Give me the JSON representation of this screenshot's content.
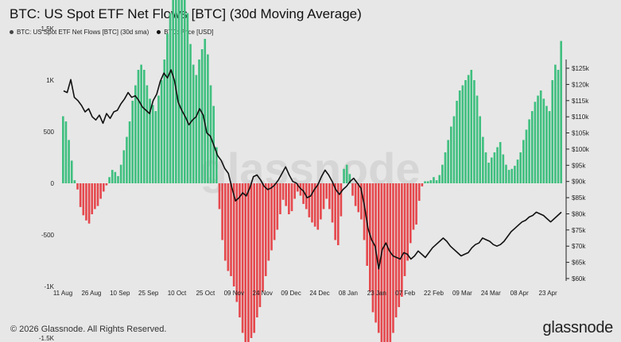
{
  "header": {
    "title": "BTC: US Spot ETF Net Flows [BTC] (30d Moving Average)"
  },
  "legend": [
    {
      "label": "BTC: US Spot ETF Net Flows [BTC] (30d sma)"
    },
    {
      "label": "BTC: Price [USD]"
    }
  ],
  "footer": {
    "copyright": "© 2026 Glassnode. All Rights Reserved.",
    "brand": "glassnode"
  },
  "watermark": "glassnode",
  "colors": {
    "positive": "#3fbf7f",
    "negative": "#e5484d",
    "price_line": "#111111",
    "background": "#e7e7e7"
  },
  "chart_data": {
    "type": "bar",
    "title": "BTC: US Spot ETF Net Flows [BTC] (30d Moving Average)",
    "grid": false,
    "legend_position": "top-left",
    "x_tick_labels": [
      "11 Aug",
      "26 Aug",
      "10 Sep",
      "25 Sep",
      "10 Oct",
      "25 Oct",
      "09 Nov",
      "24 Nov",
      "09 Dec",
      "24 Dec",
      "08 Jan",
      "23 Jan",
      "07 Feb",
      "22 Feb",
      "09 Mar",
      "24 Mar",
      "08 Apr",
      "23 Apr"
    ],
    "y_left_ticks": [
      "2K",
      "1.5K",
      "1K",
      "500",
      "0",
      "-500",
      "-1K",
      "-1.5K"
    ],
    "y_left_range": [
      -1900,
      2200
    ],
    "y_right_ticks": [
      "$125k",
      "$120k",
      "$115k",
      "$110k",
      "$105k",
      "$100k",
      "$95k",
      "$90k",
      "$85k",
      "$80k",
      "$75k",
      "$70k",
      "$65k",
      "$60k"
    ],
    "y_right_range": [
      59000,
      127000
    ],
    "series": [
      {
        "name": "BTC: US Spot ETF Net Flows [BTC] (30d sma)",
        "type": "bar",
        "values": [
          650,
          600,
          420,
          220,
          30,
          -60,
          -230,
          -310,
          -360,
          -390,
          -300,
          -250,
          -220,
          -150,
          -80,
          -20,
          60,
          130,
          110,
          70,
          180,
          320,
          450,
          600,
          800,
          950,
          1100,
          1150,
          1100,
          950,
          820,
          760,
          700,
          850,
          1000,
          1200,
          1450,
          1650,
          1900,
          2050,
          2150,
          2100,
          1900,
          1650,
          1350,
          1150,
          1050,
          1200,
          1300,
          1400,
          1250,
          950,
          750,
          350,
          -250,
          -550,
          -750,
          -850,
          -900,
          -1000,
          -1150,
          -1300,
          -1450,
          -1550,
          -1580,
          -1500,
          -1450,
          -1300,
          -1200,
          -1050,
          -900,
          -750,
          -650,
          -550,
          -450,
          -300,
          -160,
          -220,
          -300,
          -270,
          -150,
          -80,
          -120,
          -200,
          -250,
          -330,
          -380,
          -420,
          -450,
          -350,
          -250,
          -150,
          -250,
          -380,
          -550,
          -600,
          -320,
          140,
          180,
          90,
          -120,
          -220,
          -280,
          -350,
          -550,
          -800,
          -1050,
          -1250,
          -1350,
          -1450,
          -1550,
          -1650,
          -1700,
          -1580,
          -1450,
          -1300,
          -1200,
          -1100,
          -900,
          -750,
          -580,
          -450,
          -400,
          -170,
          -30,
          20,
          20,
          30,
          60,
          30,
          80,
          180,
          300,
          420,
          550,
          650,
          800,
          900,
          950,
          1000,
          1050,
          1100,
          1000,
          850,
          650,
          450,
          300,
          200,
          250,
          300,
          350,
          400,
          280,
          180,
          130,
          140,
          170,
          230,
          300,
          420,
          520,
          620,
          700,
          790,
          850,
          900,
          820,
          750,
          700,
          1000,
          1150,
          1100,
          1380
        ]
      },
      {
        "name": "BTC: Price [USD]",
        "type": "line",
        "axis": "right",
        "values": [
          118000,
          117500,
          121500,
          116000,
          115000,
          113500,
          111500,
          112500,
          110000,
          109000,
          110500,
          108000,
          111000,
          109500,
          111500,
          112000,
          114000,
          115500,
          117500,
          116000,
          116500,
          115000,
          113000,
          112000,
          111000,
          115000,
          117000,
          121000,
          123500,
          122000,
          124500,
          121000,
          114500,
          112000,
          110000,
          107500,
          109000,
          110000,
          112500,
          110500,
          105000,
          104000,
          101000,
          98000,
          96500,
          94000,
          92500,
          88000,
          84000,
          85000,
          86500,
          85500,
          88000,
          91500,
          92000,
          90500,
          88500,
          87500,
          88000,
          89000,
          90500,
          92500,
          94500,
          92000,
          90000,
          89500,
          88000,
          87000,
          85000,
          85500,
          87500,
          89000,
          91500,
          93500,
          92000,
          90000,
          87500,
          86000,
          87500,
          88500,
          90000,
          91000,
          89500,
          88000,
          82500,
          75500,
          72000,
          70000,
          63000,
          69000,
          71000,
          68500,
          67000,
          66500,
          66000,
          68000,
          67500,
          66000,
          67000,
          68500,
          67500,
          66500,
          68000,
          69500,
          70500,
          71500,
          72500,
          71500,
          70000,
          69000,
          68000,
          67000,
          67500,
          68000,
          69500,
          70500,
          71000,
          72500,
          72000,
          71500,
          70500,
          70000,
          70500,
          71500,
          73000,
          74500,
          75500,
          76500,
          77500,
          78000,
          79000,
          79500,
          80500,
          80000,
          79500,
          78500,
          77500,
          78500,
          79500,
          80500
        ],
        "line_x_index_range": [
          0,
          139
        ]
      }
    ]
  }
}
